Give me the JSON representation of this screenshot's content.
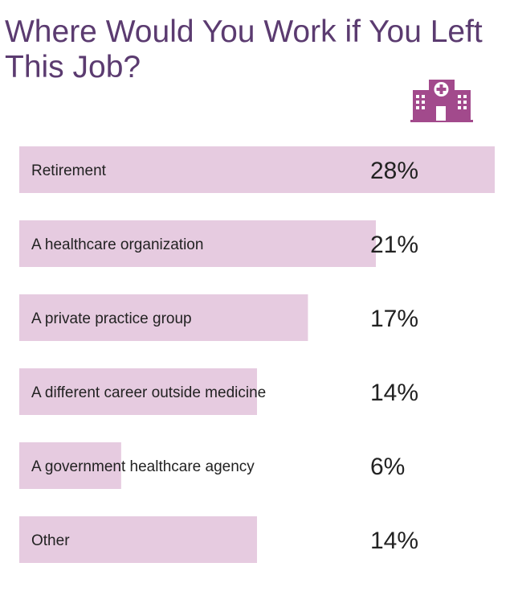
{
  "chart_data": {
    "type": "bar",
    "orientation": "horizontal",
    "title": "Where Would You Work if You Left This Job?",
    "categories": [
      "Retirement",
      "A healthcare organization",
      "A private practice group",
      "A different career outside medicine",
      "A government healthcare agency",
      "Other"
    ],
    "values": [
      28,
      21,
      17,
      14,
      6,
      14
    ],
    "value_labels": [
      "28%",
      "21%",
      "17%",
      "14%",
      "6%",
      "14%"
    ],
    "unit": "%",
    "grid": false,
    "bar_color": "#e6cbe0",
    "title_color": "#5b3b70",
    "icon": "hospital-icon",
    "icon_color": "#a24a8c"
  }
}
